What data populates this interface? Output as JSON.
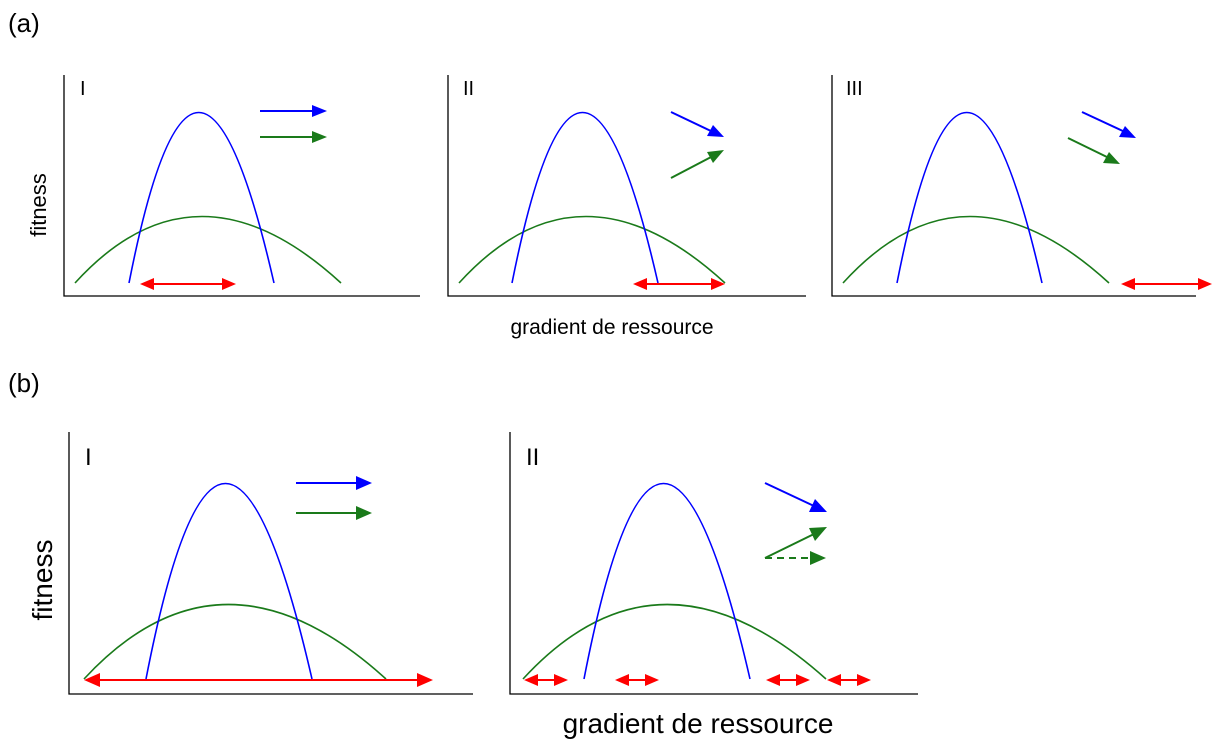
{
  "colors": {
    "blue": "#0000ff",
    "green": "#1a7a1a",
    "red": "#ff0000",
    "axis": "#000000"
  },
  "part_a": {
    "label": "(a)",
    "ylabel": "fitness",
    "xlabel": "gradient de ressource",
    "panels": [
      {
        "label": "I",
        "arrows": [
          "blue-right",
          "green-right"
        ],
        "red_arrows": "centered under peak"
      },
      {
        "label": "II",
        "arrows": [
          "blue-down-right",
          "green-up-right"
        ],
        "red_arrows": "right side of peak"
      },
      {
        "label": "III",
        "arrows": [
          "blue-down-right",
          "green-down-right"
        ],
        "red_arrows": "far right, beyond curves"
      }
    ]
  },
  "part_b": {
    "label": "(b)",
    "ylabel": "fitness",
    "xlabel": "gradient de ressource",
    "panels": [
      {
        "label": "I",
        "arrows": [
          "blue-right",
          "green-right"
        ],
        "red_arrows": "spanning full axis"
      },
      {
        "label": "II",
        "arrows": [
          "blue-down-right",
          "green-up-right",
          "green-dashed-right"
        ],
        "red_arrows": "four short segments"
      }
    ]
  }
}
